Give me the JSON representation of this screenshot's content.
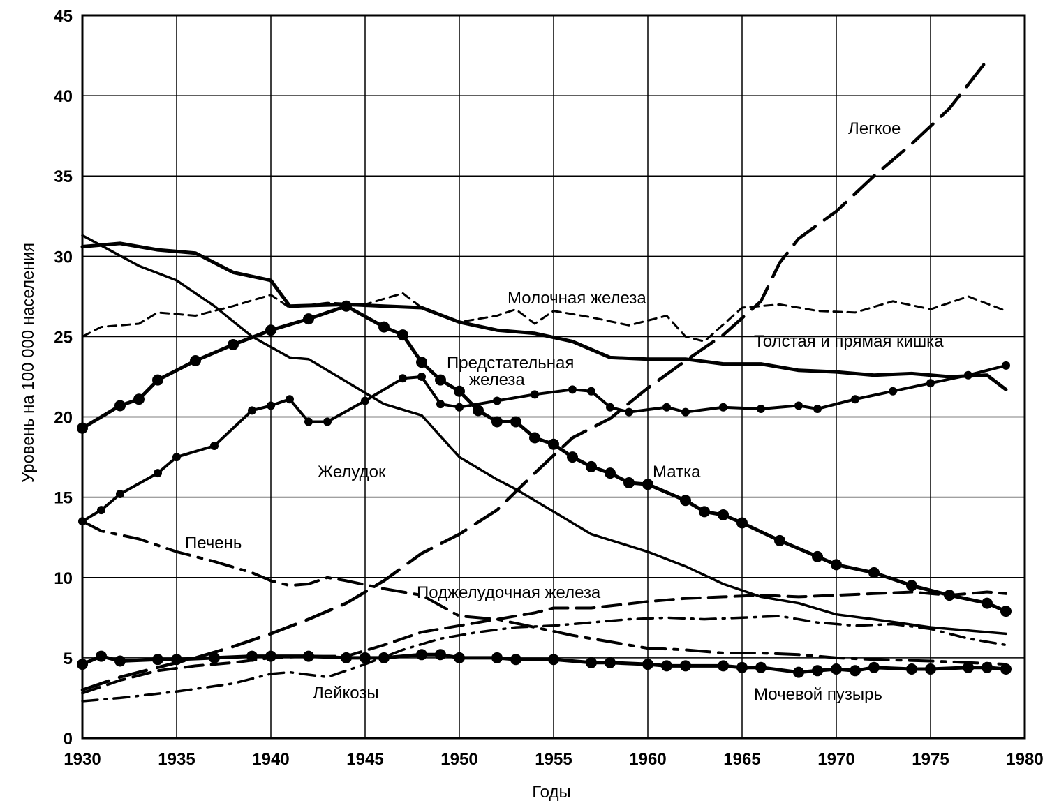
{
  "chart_data": {
    "type": "line",
    "title": "",
    "xlabel": "Годы",
    "ylabel": "Уровень на 100 000 населения",
    "xlim": [
      1930,
      1980
    ],
    "ylim": [
      0,
      45
    ],
    "xticks": [
      1930,
      1935,
      1940,
      1945,
      1950,
      1955,
      1960,
      1965,
      1970,
      1975,
      1980
    ],
    "yticks": [
      0,
      5,
      10,
      15,
      20,
      25,
      30,
      35,
      40,
      45
    ],
    "grid": true,
    "legend": "inline labels",
    "line_color": "#000000",
    "series": [
      {
        "name": "Легкое",
        "label_text": "Легкое",
        "style": "long-dash",
        "points": [
          [
            1930,
            3.0
          ],
          [
            1932,
            3.8
          ],
          [
            1934,
            4.4
          ],
          [
            1936,
            5.0
          ],
          [
            1938,
            5.7
          ],
          [
            1940,
            6.5
          ],
          [
            1942,
            7.4
          ],
          [
            1944,
            8.4
          ],
          [
            1946,
            9.8
          ],
          [
            1948,
            11.5
          ],
          [
            1950,
            12.7
          ],
          [
            1952,
            14.2
          ],
          [
            1954,
            16.5
          ],
          [
            1956,
            18.7
          ],
          [
            1958,
            19.9
          ],
          [
            1960,
            21.8
          ],
          [
            1962,
            23.5
          ],
          [
            1964,
            25.1
          ],
          [
            1966,
            27.2
          ],
          [
            1967,
            29.6
          ],
          [
            1968,
            31.1
          ],
          [
            1970,
            32.8
          ],
          [
            1972,
            35.0
          ],
          [
            1974,
            37.0
          ],
          [
            1976,
            39.2
          ],
          [
            1978,
            42.2
          ]
        ]
      },
      {
        "name": "Молочная железа",
        "label_text": "Молочная железа",
        "style": "short-dash",
        "points": [
          [
            1930,
            25.0
          ],
          [
            1931,
            25.6
          ],
          [
            1933,
            25.8
          ],
          [
            1934,
            26.5
          ],
          [
            1936,
            26.3
          ],
          [
            1938,
            26.9
          ],
          [
            1940,
            27.6
          ],
          [
            1941,
            26.8
          ],
          [
            1943,
            27.1
          ],
          [
            1945,
            27.0
          ],
          [
            1947,
            27.7
          ],
          [
            1948,
            26.8
          ],
          [
            1950,
            25.9
          ],
          [
            1952,
            26.3
          ],
          [
            1953,
            26.7
          ],
          [
            1954,
            25.8
          ],
          [
            1955,
            26.6
          ],
          [
            1957,
            26.2
          ],
          [
            1959,
            25.7
          ],
          [
            1961,
            26.3
          ],
          [
            1962,
            25.0
          ],
          [
            1963,
            24.7
          ],
          [
            1965,
            26.8
          ],
          [
            1967,
            27.0
          ],
          [
            1969,
            26.6
          ],
          [
            1971,
            26.5
          ],
          [
            1973,
            27.2
          ],
          [
            1975,
            26.7
          ],
          [
            1977,
            27.5
          ],
          [
            1979,
            26.6
          ]
        ]
      },
      {
        "name": "Толстая и прямая кишка",
        "label_text": "Толстая и прямая кишка",
        "style": "thick-solid",
        "points": [
          [
            1930,
            30.6
          ],
          [
            1932,
            30.8
          ],
          [
            1934,
            30.4
          ],
          [
            1936,
            30.2
          ],
          [
            1938,
            29.0
          ],
          [
            1940,
            28.5
          ],
          [
            1941,
            26.9
          ],
          [
            1944,
            27.0
          ],
          [
            1946,
            26.9
          ],
          [
            1948,
            26.8
          ],
          [
            1950,
            25.9
          ],
          [
            1952,
            25.4
          ],
          [
            1954,
            25.2
          ],
          [
            1956,
            24.7
          ],
          [
            1958,
            23.7
          ],
          [
            1960,
            23.6
          ],
          [
            1962,
            23.6
          ],
          [
            1964,
            23.3
          ],
          [
            1966,
            23.3
          ],
          [
            1968,
            22.9
          ],
          [
            1970,
            22.8
          ],
          [
            1972,
            22.6
          ],
          [
            1974,
            22.7
          ],
          [
            1976,
            22.5
          ],
          [
            1978,
            22.6
          ],
          [
            1979,
            21.7
          ]
        ]
      },
      {
        "name": "Предстательная железа",
        "label_text": "Предстательная железа",
        "style": "solid-dots",
        "points": [
          [
            1930,
            13.5
          ],
          [
            1931,
            14.2
          ],
          [
            1932,
            15.2
          ],
          [
            1934,
            16.5
          ],
          [
            1935,
            17.5
          ],
          [
            1937,
            18.2
          ],
          [
            1939,
            20.4
          ],
          [
            1940,
            20.7
          ],
          [
            1941,
            21.1
          ],
          [
            1942,
            19.7
          ],
          [
            1943,
            19.7
          ],
          [
            1945,
            21.0
          ],
          [
            1947,
            22.4
          ],
          [
            1948,
            22.5
          ],
          [
            1949,
            20.8
          ],
          [
            1950,
            20.6
          ],
          [
            1952,
            21.0
          ],
          [
            1954,
            21.4
          ],
          [
            1956,
            21.7
          ],
          [
            1957,
            21.6
          ],
          [
            1958,
            20.6
          ],
          [
            1959,
            20.3
          ],
          [
            1961,
            20.6
          ],
          [
            1962,
            20.3
          ],
          [
            1964,
            20.6
          ],
          [
            1966,
            20.5
          ],
          [
            1968,
            20.7
          ],
          [
            1969,
            20.5
          ],
          [
            1971,
            21.1
          ],
          [
            1973,
            21.6
          ],
          [
            1975,
            22.1
          ],
          [
            1977,
            22.6
          ],
          [
            1979,
            23.2
          ]
        ]
      },
      {
        "name": "Желудок",
        "label_text": "Желудок",
        "style": "solid",
        "points": [
          [
            1930,
            31.3
          ],
          [
            1933,
            29.4
          ],
          [
            1935,
            28.5
          ],
          [
            1937,
            26.9
          ],
          [
            1939,
            25.0
          ],
          [
            1941,
            23.7
          ],
          [
            1942,
            23.6
          ],
          [
            1944,
            22.2
          ],
          [
            1946,
            20.8
          ],
          [
            1948,
            20.1
          ],
          [
            1950,
            17.5
          ],
          [
            1952,
            16.1
          ],
          [
            1953,
            15.5
          ],
          [
            1955,
            14.1
          ],
          [
            1957,
            12.7
          ],
          [
            1960,
            11.6
          ],
          [
            1962,
            10.7
          ],
          [
            1964,
            9.6
          ],
          [
            1966,
            8.8
          ],
          [
            1968,
            8.4
          ],
          [
            1970,
            7.7
          ],
          [
            1972,
            7.4
          ],
          [
            1975,
            6.9
          ],
          [
            1977,
            6.7
          ],
          [
            1979,
            6.5
          ]
        ]
      },
      {
        "name": "Матка",
        "label_text": "Матка",
        "style": "thick-solid-dots",
        "points": [
          [
            1930,
            19.3
          ],
          [
            1932,
            20.7
          ],
          [
            1933,
            21.1
          ],
          [
            1934,
            22.3
          ],
          [
            1936,
            23.5
          ],
          [
            1938,
            24.5
          ],
          [
            1940,
            25.4
          ],
          [
            1942,
            26.1
          ],
          [
            1944,
            26.9
          ],
          [
            1946,
            25.6
          ],
          [
            1947,
            25.1
          ],
          [
            1948,
            23.4
          ],
          [
            1949,
            22.3
          ],
          [
            1950,
            21.6
          ],
          [
            1951,
            20.4
          ],
          [
            1952,
            19.7
          ],
          [
            1953,
            19.7
          ],
          [
            1954,
            18.7
          ],
          [
            1955,
            18.3
          ],
          [
            1956,
            17.5
          ],
          [
            1957,
            16.9
          ],
          [
            1958,
            16.5
          ],
          [
            1959,
            15.9
          ],
          [
            1960,
            15.8
          ],
          [
            1962,
            14.8
          ],
          [
            1963,
            14.1
          ],
          [
            1964,
            13.9
          ],
          [
            1965,
            13.4
          ],
          [
            1967,
            12.3
          ],
          [
            1969,
            11.3
          ],
          [
            1970,
            10.8
          ],
          [
            1972,
            10.3
          ],
          [
            1974,
            9.5
          ],
          [
            1976,
            8.9
          ],
          [
            1978,
            8.4
          ],
          [
            1979,
            7.9
          ]
        ]
      },
      {
        "name": "Печень",
        "label_text": "Печень",
        "style": "dash-gap",
        "points": [
          [
            1930,
            13.5
          ],
          [
            1931,
            12.9
          ],
          [
            1933,
            12.4
          ],
          [
            1935,
            11.6
          ],
          [
            1937,
            11.0
          ],
          [
            1939,
            10.3
          ],
          [
            1940,
            9.8
          ],
          [
            1941,
            9.5
          ],
          [
            1942,
            9.6
          ],
          [
            1943,
            10.0
          ],
          [
            1944,
            9.8
          ],
          [
            1946,
            9.3
          ],
          [
            1948,
            8.9
          ],
          [
            1950,
            7.6
          ],
          [
            1952,
            7.4
          ],
          [
            1954,
            6.9
          ],
          [
            1956,
            6.4
          ],
          [
            1958,
            6.0
          ],
          [
            1960,
            5.6
          ],
          [
            1962,
            5.5
          ],
          [
            1964,
            5.3
          ],
          [
            1966,
            5.3
          ],
          [
            1968,
            5.2
          ],
          [
            1970,
            5.0
          ],
          [
            1972,
            4.9
          ],
          [
            1975,
            4.8
          ],
          [
            1979,
            4.6
          ]
        ]
      },
      {
        "name": "Поджелудочная железа",
        "label_text": "Поджелудочная железа",
        "style": "medium-dash",
        "points": [
          [
            1930,
            2.8
          ],
          [
            1932,
            3.6
          ],
          [
            1934,
            4.2
          ],
          [
            1936,
            4.5
          ],
          [
            1938,
            4.7
          ],
          [
            1940,
            5.0
          ],
          [
            1942,
            5.1
          ],
          [
            1944,
            5.1
          ],
          [
            1946,
            5.8
          ],
          [
            1948,
            6.6
          ],
          [
            1950,
            7.0
          ],
          [
            1952,
            7.4
          ],
          [
            1954,
            7.8
          ],
          [
            1955,
            8.1
          ],
          [
            1957,
            8.1
          ],
          [
            1960,
            8.5
          ],
          [
            1962,
            8.7
          ],
          [
            1964,
            8.8
          ],
          [
            1966,
            8.9
          ],
          [
            1968,
            8.8
          ],
          [
            1970,
            8.9
          ],
          [
            1972,
            9.0
          ],
          [
            1974,
            9.1
          ],
          [
            1976,
            8.9
          ],
          [
            1978,
            9.1
          ],
          [
            1979,
            9.0
          ]
        ]
      },
      {
        "name": "Лейкозы",
        "label_text": "Лейкозы",
        "style": "dash-dot",
        "points": [
          [
            1930,
            2.3
          ],
          [
            1932,
            2.5
          ],
          [
            1935,
            2.9
          ],
          [
            1938,
            3.4
          ],
          [
            1940,
            4.0
          ],
          [
            1941,
            4.1
          ],
          [
            1943,
            3.8
          ],
          [
            1945,
            4.6
          ],
          [
            1947,
            5.5
          ],
          [
            1949,
            6.2
          ],
          [
            1951,
            6.6
          ],
          [
            1953,
            6.9
          ],
          [
            1955,
            7.0
          ],
          [
            1957,
            7.2
          ],
          [
            1959,
            7.4
          ],
          [
            1961,
            7.5
          ],
          [
            1963,
            7.4
          ],
          [
            1965,
            7.5
          ],
          [
            1967,
            7.6
          ],
          [
            1969,
            7.2
          ],
          [
            1971,
            7.0
          ],
          [
            1973,
            7.1
          ],
          [
            1975,
            6.8
          ],
          [
            1977,
            6.2
          ],
          [
            1979,
            5.8
          ]
        ]
      },
      {
        "name": "Мочевой пузырь",
        "label_text": "Мочевой пузырь",
        "style": "thick-solid-dots",
        "points": [
          [
            1930,
            4.6
          ],
          [
            1931,
            5.1
          ],
          [
            1932,
            4.8
          ],
          [
            1934,
            4.9
          ],
          [
            1935,
            4.9
          ],
          [
            1937,
            5.0
          ],
          [
            1939,
            5.1
          ],
          [
            1940,
            5.1
          ],
          [
            1942,
            5.1
          ],
          [
            1944,
            5.0
          ],
          [
            1945,
            5.0
          ],
          [
            1946,
            5.0
          ],
          [
            1948,
            5.2
          ],
          [
            1949,
            5.2
          ],
          [
            1950,
            5.0
          ],
          [
            1952,
            5.0
          ],
          [
            1953,
            4.9
          ],
          [
            1955,
            4.9
          ],
          [
            1957,
            4.7
          ],
          [
            1958,
            4.7
          ],
          [
            1960,
            4.6
          ],
          [
            1961,
            4.5
          ],
          [
            1962,
            4.5
          ],
          [
            1964,
            4.5
          ],
          [
            1965,
            4.4
          ],
          [
            1966,
            4.4
          ],
          [
            1968,
            4.1
          ],
          [
            1969,
            4.2
          ],
          [
            1970,
            4.3
          ],
          [
            1971,
            4.2
          ],
          [
            1972,
            4.4
          ],
          [
            1974,
            4.3
          ],
          [
            1975,
            4.3
          ],
          [
            1977,
            4.4
          ],
          [
            1978,
            4.4
          ],
          [
            1979,
            4.3
          ]
        ]
      }
    ]
  }
}
